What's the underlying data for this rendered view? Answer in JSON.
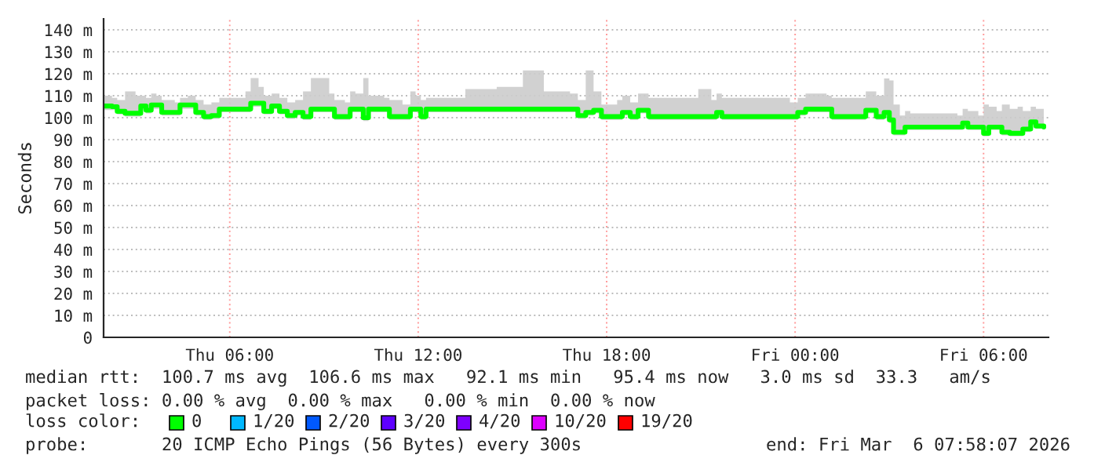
{
  "chart_data": {
    "type": "step",
    "ylabel": "Seconds",
    "xlim": [
      "2026-03-05T01:59",
      "2026-03-06T08:04"
    ],
    "xticks": [
      {
        "value": "2026-03-05T06:00",
        "label": "Thu 06:00"
      },
      {
        "value": "2026-03-05T12:00",
        "label": "Thu 12:00"
      },
      {
        "value": "2026-03-05T18:00",
        "label": "Thu 18:00"
      },
      {
        "value": "2026-03-06T00:00",
        "label": "Fri 00:00"
      },
      {
        "value": "2026-03-06T06:00",
        "label": "Fri 06:00"
      }
    ],
    "ylim": [
      0,
      145
    ],
    "yticks": [
      {
        "value": 0,
        "label": "0"
      },
      {
        "value": 10,
        "label": "10 m"
      },
      {
        "value": 20,
        "label": "20 m"
      },
      {
        "value": 30,
        "label": "30 m"
      },
      {
        "value": 40,
        "label": "40 m"
      },
      {
        "value": 50,
        "label": "50 m"
      },
      {
        "value": 60,
        "label": "60 m"
      },
      {
        "value": 70,
        "label": "70 m"
      },
      {
        "value": 80,
        "label": "80 m"
      },
      {
        "value": 90,
        "label": "90 m"
      },
      {
        "value": 100,
        "label": "100 m"
      },
      {
        "value": 110,
        "label": "110 m"
      },
      {
        "value": 120,
        "label": "120 m"
      },
      {
        "value": 130,
        "label": "130 m"
      },
      {
        "value": 140,
        "label": "140 m"
      }
    ],
    "grid": true,
    "series": [
      {
        "color": "#00ff00",
        "x": [
          "2026-03-05T02:00",
          "2026-03-05T02:15",
          "2026-03-05T02:25",
          "2026-03-05T02:40",
          "2026-03-05T03:00",
          "2026-03-05T03:10",
          "2026-03-05T03:20",
          "2026-03-05T03:30",
          "2026-03-05T03:40",
          "2026-03-05T03:50",
          "2026-03-05T04:15",
          "2026-03-05T04:25",
          "2026-03-05T04:40",
          "2026-03-05T04:55",
          "2026-03-05T05:10",
          "2026-03-05T05:25",
          "2026-03-05T05:40",
          "2026-03-05T06:30",
          "2026-03-05T06:40",
          "2026-03-05T06:55",
          "2026-03-05T07:05",
          "2026-03-05T07:20",
          "2026-03-05T07:35",
          "2026-03-05T07:50",
          "2026-03-05T08:05",
          "2026-03-05T08:20",
          "2026-03-05T08:35",
          "2026-03-05T09:10",
          "2026-03-05T09:20",
          "2026-03-05T09:40",
          "2026-03-05T09:50",
          "2026-03-05T10:00",
          "2026-03-05T10:15",
          "2026-03-05T10:25",
          "2026-03-05T10:55",
          "2026-03-05T11:05",
          "2026-03-05T11:30",
          "2026-03-05T11:45",
          "2026-03-05T11:55",
          "2026-03-05T12:05",
          "2026-03-05T12:15",
          "2026-03-05T13:30",
          "2026-03-05T14:30",
          "2026-03-05T15:20",
          "2026-03-05T16:00",
          "2026-03-05T16:50",
          "2026-03-05T17:05",
          "2026-03-05T17:20",
          "2026-03-05T17:35",
          "2026-03-05T17:50",
          "2026-03-05T18:20",
          "2026-03-05T18:30",
          "2026-03-05T18:45",
          "2026-03-05T19:00",
          "2026-03-05T19:20",
          "2026-03-05T20:55",
          "2026-03-05T21:20",
          "2026-03-05T21:30",
          "2026-03-05T21:40",
          "2026-03-05T23:50",
          "2026-03-06T00:05",
          "2026-03-06T00:20",
          "2026-03-06T01:00",
          "2026-03-06T01:10",
          "2026-03-06T02:00",
          "2026-03-06T02:15",
          "2026-03-06T02:35",
          "2026-03-06T02:50",
          "2026-03-06T03:00",
          "2026-03-06T03:08",
          "2026-03-06T03:20",
          "2026-03-06T03:30",
          "2026-03-06T03:40",
          "2026-03-06T05:10",
          "2026-03-06T05:20",
          "2026-03-06T05:30",
          "2026-03-06T05:50",
          "2026-03-06T06:00",
          "2026-03-06T06:10",
          "2026-03-06T06:25",
          "2026-03-06T06:35",
          "2026-03-06T06:50",
          "2026-03-06T07:05",
          "2026-03-06T07:15",
          "2026-03-06T07:30",
          "2026-03-06T07:40",
          "2026-03-06T07:55"
        ],
        "values": [
          105.3,
          105,
          102.9,
          102,
          102,
          105.3,
          103.4,
          105.8,
          105.8,
          102.4,
          102.4,
          105.8,
          105.8,
          102.4,
          100.5,
          101,
          103.9,
          103.9,
          106.6,
          106.6,
          102.9,
          105.3,
          102.9,
          101,
          102.4,
          100.5,
          103.9,
          103.9,
          100.5,
          100.5,
          103.9,
          103.9,
          100,
          103.9,
          103.9,
          100.5,
          100.5,
          103.9,
          103.9,
          100.5,
          103.9,
          103.9,
          103.9,
          103.9,
          103.9,
          103.9,
          101,
          102.4,
          103.4,
          100.5,
          100.5,
          102.4,
          100.5,
          103.4,
          100.5,
          100.5,
          100.5,
          102.4,
          100.5,
          100.5,
          102.4,
          103.9,
          103.9,
          100.5,
          100.5,
          103.4,
          100.5,
          102.4,
          99,
          93.4,
          93.4,
          95.7,
          95.7,
          95.7,
          97.6,
          95.7,
          95.7,
          92.9,
          95.7,
          95.7,
          93.4,
          92.9,
          92.9,
          94.8,
          98.1,
          96.2,
          95.7
        ],
        "lower": [
          103.5,
          103.5,
          101.5,
          100.5,
          100.5,
          103.5,
          102,
          104,
          104,
          101,
          101,
          104,
          104,
          101,
          99,
          99.5,
          102.5,
          102.5,
          105,
          105,
          101.5,
          104,
          101.5,
          99.5,
          101,
          99,
          102.5,
          102.5,
          99,
          99,
          102.5,
          102.5,
          98.5,
          102.5,
          102.5,
          99,
          99,
          102.5,
          102.5,
          99,
          102.5,
          102.5,
          102.5,
          102.5,
          102.5,
          102.5,
          99.5,
          101,
          102,
          99,
          99,
          101,
          99,
          102,
          99,
          99,
          99,
          101,
          99,
          99,
          101,
          102.5,
          102.5,
          99,
          99,
          102,
          99,
          101,
          97.5,
          92,
          92,
          94.5,
          94.5,
          94.5,
          96,
          94.5,
          94.5,
          91.5,
          94.5,
          94.5,
          92,
          91.5,
          91.5,
          93.5,
          96.5,
          95,
          94.5
        ],
        "upper": [
          110,
          109,
          108,
          112,
          110,
          110,
          109,
          111,
          110,
          108,
          107,
          109,
          110,
          108,
          106,
          107,
          109,
          112,
          118,
          114,
          110,
          111,
          109,
          107,
          108,
          112,
          118,
          111,
          108,
          107,
          112,
          111,
          118,
          110,
          109,
          108,
          106,
          112,
          110,
          108,
          109,
          113,
          114,
          121.5,
          112,
          111,
          108,
          121.5,
          112,
          106,
          108,
          110,
          107,
          111,
          109,
          113,
          108,
          111,
          109,
          107,
          109,
          111,
          110,
          109,
          109,
          112,
          110,
          117.9,
          117,
          106,
          101,
          103,
          102,
          101,
          104,
          103,
          101,
          106,
          105,
          103,
          106,
          104,
          105,
          103,
          105,
          104,
          100
        ]
      }
    ],
    "annotations": [
      "median rtt:  100.7 ms avg  106.6 ms max   92.1 ms min   95.4 ms now   3.0 ms sd  33.3   am/s",
      "packet loss: 0.00 % avg  0.00 % max   0.00 % min  0.00 % now",
      "loss color:",
      "0",
      "1/20",
      "2/20",
      "3/20",
      "4/20",
      "10/20",
      "19/20",
      "probe:       20 ICMP Echo Pings (56 Bytes) every 300s",
      "end: Fri Mar  6 07:58:07 2026"
    ]
  }
}
